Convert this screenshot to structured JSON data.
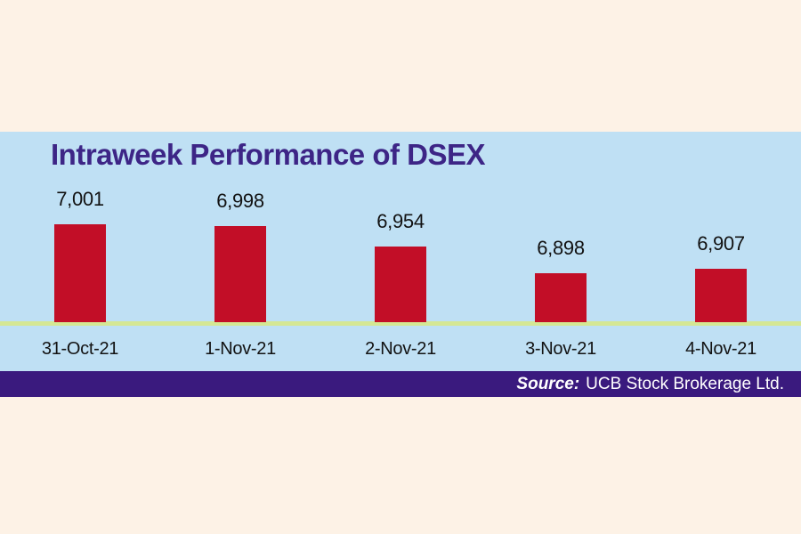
{
  "page": {
    "background": "#fdf2e6"
  },
  "panel": {
    "background": "#bfe0f4",
    "baseline_color": "#d5e794"
  },
  "title": {
    "text": "Intraweek Performance of DSEX",
    "color": "#3d2586"
  },
  "footer": {
    "source_label": "Source:",
    "source_text": "UCB Stock Brokerage Ltd.",
    "background": "#3a1a7e",
    "text_color": "#ffffff"
  },
  "chart_data": {
    "type": "bar",
    "title": "Intraweek Performance of DSEX",
    "categories": [
      "31-Oct-21",
      "1-Nov-21",
      "2-Nov-21",
      "3-Nov-21",
      "4-Nov-21"
    ],
    "values": [
      7001,
      6998,
      6954,
      6898,
      6907
    ],
    "value_labels": [
      "7,001",
      "6,998",
      "6,954",
      "6,898",
      "6,907"
    ],
    "bar_color": "#c20e27",
    "xlabel": "",
    "ylabel": "",
    "ylim": [
      6795,
      7005
    ],
    "grid": false,
    "legend": false,
    "annotations": "value shown above each bar; x-axis baseline line in pale yellow-green"
  }
}
